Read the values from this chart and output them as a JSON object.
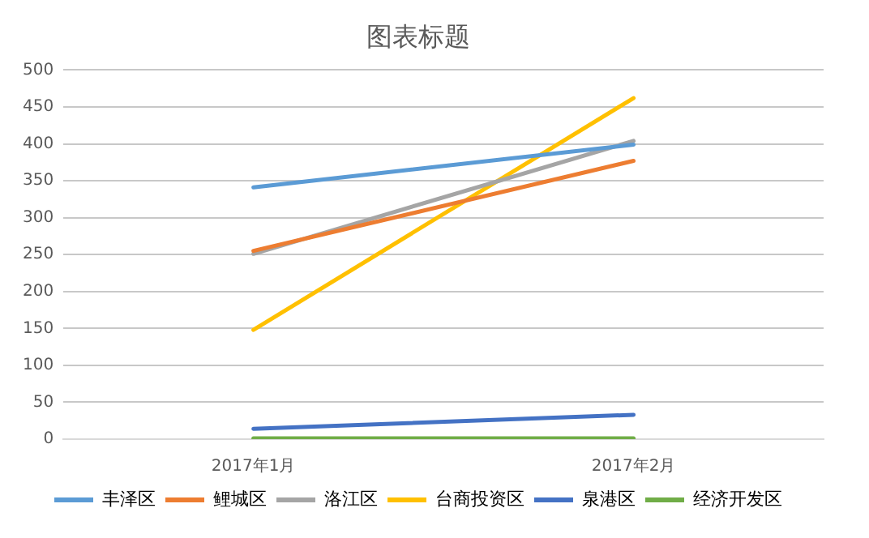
{
  "chart_data": {
    "type": "line",
    "title": "图表标题",
    "categories": [
      "2017年1月",
      "2017年2月"
    ],
    "series": [
      {
        "name": "丰泽区",
        "color": "#5b9bd5",
        "values": [
          341,
          399
        ]
      },
      {
        "name": "鲤城区",
        "color": "#ed7d31",
        "values": [
          255,
          377
        ]
      },
      {
        "name": "洛江区",
        "color": "#a5a5a5",
        "values": [
          251,
          404
        ]
      },
      {
        "name": "台商投资区",
        "color": "#ffc000",
        "values": [
          148,
          462
        ]
      },
      {
        "name": "泉港区",
        "color": "#4472c4",
        "values": [
          14,
          33
        ]
      },
      {
        "name": "经济开发区",
        "color": "#70ad47",
        "values": [
          1,
          1
        ]
      }
    ],
    "ylim": [
      0,
      500
    ],
    "yticks": [
      0,
      50,
      100,
      150,
      200,
      250,
      300,
      350,
      400,
      450,
      500
    ],
    "grid": "y",
    "legend": "bottom",
    "marker": "none",
    "line_style": "solid"
  }
}
